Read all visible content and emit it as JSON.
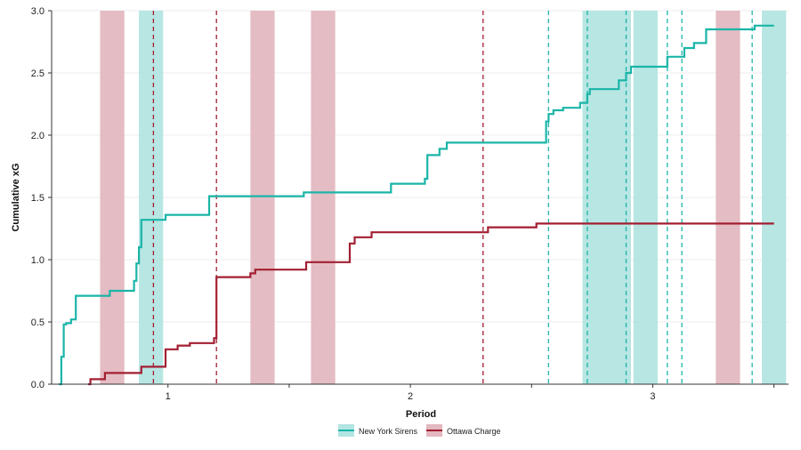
{
  "chart_data": {
    "type": "line",
    "xlabel": "Period",
    "ylabel": "Cumulative xG",
    "xlim": [
      0.52,
      3.56
    ],
    "ylim": [
      0,
      3.0
    ],
    "x_ticks": [
      1,
      2,
      3
    ],
    "x_tick_labels": [
      "1",
      "2",
      "3"
    ],
    "x_minor_ticks": [
      0.5,
      1.5,
      2.5,
      3.5
    ],
    "y_ticks": [
      0,
      0.5,
      1.0,
      1.5,
      2.0,
      2.5,
      3.0
    ],
    "y_tick_labels": [
      "0.0",
      "0.5",
      "1.0",
      "1.5",
      "2.0",
      "2.5",
      "3.0"
    ],
    "grid": "horizontal",
    "legend_position": "bottom-center",
    "colors": {
      "sirens": "#1ab5a8",
      "sirens_band": "#b3e5e2",
      "charge": "#a31f32",
      "charge_band": "#e3b8c0"
    },
    "legend": [
      {
        "label": "New York Sirens",
        "team": "sirens"
      },
      {
        "label": "Ottawa Charge",
        "team": "charge"
      }
    ],
    "series": [
      {
        "name": "New York Sirens",
        "team": "sirens",
        "step_points": [
          [
            0.55,
            0.0
          ],
          [
            0.56,
            0.22
          ],
          [
            0.57,
            0.48
          ],
          [
            0.58,
            0.49
          ],
          [
            0.6,
            0.52
          ],
          [
            0.61,
            0.52
          ],
          [
            0.62,
            0.71
          ],
          [
            0.76,
            0.75
          ],
          [
            0.86,
            0.83
          ],
          [
            0.87,
            0.97
          ],
          [
            0.88,
            1.1
          ],
          [
            0.89,
            1.32
          ],
          [
            0.99,
            1.36
          ],
          [
            1.17,
            1.51
          ],
          [
            1.56,
            1.54
          ],
          [
            1.92,
            1.61
          ],
          [
            2.06,
            1.65
          ],
          [
            2.07,
            1.84
          ],
          [
            2.12,
            1.89
          ],
          [
            2.15,
            1.94
          ],
          [
            2.56,
            2.11
          ],
          [
            2.57,
            2.17
          ],
          [
            2.59,
            2.2
          ],
          [
            2.63,
            2.22
          ],
          [
            2.7,
            2.26
          ],
          [
            2.73,
            2.33
          ],
          [
            2.74,
            2.37
          ],
          [
            2.86,
            2.44
          ],
          [
            2.89,
            2.5
          ],
          [
            2.91,
            2.55
          ],
          [
            3.06,
            2.63
          ],
          [
            3.13,
            2.7
          ],
          [
            3.17,
            2.74
          ],
          [
            3.22,
            2.85
          ],
          [
            3.42,
            2.88
          ],
          [
            3.5,
            2.88
          ]
        ]
      },
      {
        "name": "Ottawa Charge",
        "team": "charge",
        "step_points": [
          [
            0.67,
            0.0
          ],
          [
            0.68,
            0.04
          ],
          [
            0.74,
            0.09
          ],
          [
            0.89,
            0.14
          ],
          [
            0.99,
            0.28
          ],
          [
            1.04,
            0.31
          ],
          [
            1.09,
            0.33
          ],
          [
            1.19,
            0.37
          ],
          [
            1.2,
            0.86
          ],
          [
            1.34,
            0.89
          ],
          [
            1.36,
            0.92
          ],
          [
            1.57,
            0.98
          ],
          [
            1.75,
            1.13
          ],
          [
            1.77,
            1.18
          ],
          [
            1.84,
            1.22
          ],
          [
            2.32,
            1.26
          ],
          [
            2.52,
            1.29
          ],
          [
            3.5,
            1.29
          ]
        ]
      }
    ],
    "penalty_bands": [
      {
        "team": "charge",
        "start": 0.72,
        "end": 0.82
      },
      {
        "team": "sirens",
        "start": 0.88,
        "end": 0.98
      },
      {
        "team": "charge",
        "start": 1.34,
        "end": 1.44
      },
      {
        "team": "charge",
        "start": 1.59,
        "end": 1.69
      },
      {
        "team": "sirens",
        "start": 2.71,
        "end": 2.91
      },
      {
        "team": "sirens",
        "start": 2.92,
        "end": 3.02
      },
      {
        "team": "charge",
        "start": 3.26,
        "end": 3.36
      },
      {
        "team": "sirens",
        "start": 3.45,
        "end": 3.55
      }
    ],
    "goal_lines": [
      {
        "team": "charge",
        "x": 0.94
      },
      {
        "team": "charge",
        "x": 1.2
      },
      {
        "team": "charge",
        "x": 2.3
      },
      {
        "team": "sirens",
        "x": 2.57
      },
      {
        "team": "sirens",
        "x": 2.73
      },
      {
        "team": "sirens",
        "x": 2.89
      },
      {
        "team": "sirens",
        "x": 3.06
      },
      {
        "team": "sirens",
        "x": 3.12
      },
      {
        "team": "sirens",
        "x": 3.41
      }
    ]
  }
}
